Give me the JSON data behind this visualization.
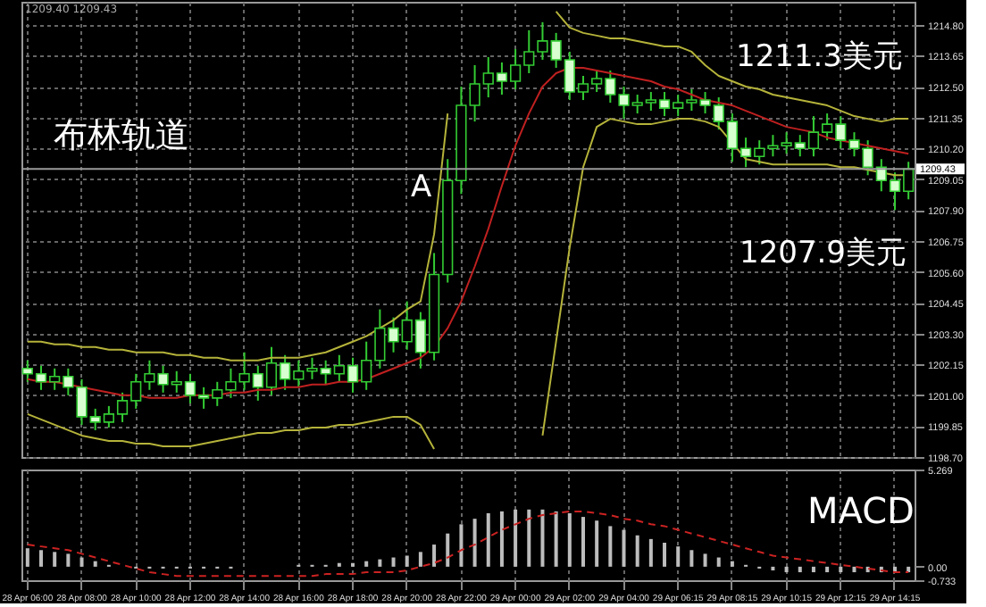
{
  "chart_data": [
    {
      "type": "candlestick",
      "subtitle": "1209.40 1209.43",
      "categories": [
        null,
        null,
        null,
        null,
        null,
        null,
        null,
        null,
        null,
        null,
        null,
        null,
        null,
        null,
        null,
        null,
        null,
        null,
        null,
        null,
        null,
        null,
        null,
        null,
        null,
        null,
        null,
        null,
        null,
        null,
        null,
        null,
        null,
        null,
        null,
        null,
        null,
        null,
        null,
        null,
        null,
        null,
        null,
        null,
        null,
        null,
        null,
        null,
        null,
        null,
        null,
        null,
        null,
        null,
        null,
        null,
        null,
        null,
        null,
        null,
        null,
        null,
        null,
        null,
        null,
        null
      ],
      "ohlc": [
        [
          1202.0,
          1202.3,
          1201.5,
          1201.8
        ],
        [
          1201.8,
          1202.1,
          1201.2,
          1201.5
        ],
        [
          1201.5,
          1202.0,
          1201.2,
          1201.7
        ],
        [
          1201.7,
          1202.0,
          1201.0,
          1201.3
        ],
        [
          1201.3,
          1201.6,
          1199.9,
          1200.2
        ],
        [
          1200.2,
          1200.5,
          1199.7,
          1200.0
        ],
        [
          1200.0,
          1200.6,
          1199.8,
          1200.3
        ],
        [
          1200.3,
          1201.1,
          1200.0,
          1200.8
        ],
        [
          1200.8,
          1201.8,
          1200.5,
          1201.5
        ],
        [
          1201.5,
          1202.3,
          1201.2,
          1201.8
        ],
        [
          1201.8,
          1202.1,
          1201.1,
          1201.4
        ],
        [
          1201.4,
          1201.9,
          1201.1,
          1201.5
        ],
        [
          1201.5,
          1201.8,
          1200.7,
          1201.0
        ],
        [
          1201.0,
          1201.3,
          1200.5,
          1200.9
        ],
        [
          1200.9,
          1201.5,
          1200.6,
          1201.2
        ],
        [
          1201.2,
          1202.0,
          1200.9,
          1201.5
        ],
        [
          1201.5,
          1202.6,
          1201.2,
          1201.8
        ],
        [
          1201.8,
          1202.1,
          1200.8,
          1201.3
        ],
        [
          1201.3,
          1202.8,
          1201.0,
          1202.2
        ],
        [
          1202.2,
          1202.5,
          1201.2,
          1201.6
        ],
        [
          1201.6,
          1202.3,
          1201.3,
          1201.9
        ],
        [
          1201.9,
          1202.4,
          1201.6,
          1202.0
        ],
        [
          1202.0,
          1202.3,
          1201.4,
          1201.8
        ],
        [
          1201.8,
          1202.5,
          1201.5,
          1202.1
        ],
        [
          1202.1,
          1202.4,
          1201.1,
          1201.5
        ],
        [
          1201.5,
          1203.0,
          1201.2,
          1202.3
        ],
        [
          1202.3,
          1204.2,
          1202.0,
          1203.5
        ],
        [
          1203.5,
          1203.9,
          1202.6,
          1203.0
        ],
        [
          1203.0,
          1204.5,
          1202.7,
          1203.8
        ],
        [
          1203.8,
          1204.1,
          1202.0,
          1202.6
        ],
        [
          1202.6,
          1206.3,
          1202.3,
          1205.5
        ],
        [
          1205.5,
          1209.8,
          1205.2,
          1209.0
        ],
        [
          1209.0,
          1212.5,
          1208.5,
          1211.8
        ],
        [
          1211.8,
          1213.3,
          1211.2,
          1212.6
        ],
        [
          1212.6,
          1213.6,
          1212.1,
          1213.0
        ],
        [
          1213.0,
          1213.4,
          1212.2,
          1212.7
        ],
        [
          1212.7,
          1213.9,
          1212.4,
          1213.3
        ],
        [
          1213.3,
          1214.6,
          1213.0,
          1213.8
        ],
        [
          1213.8,
          1214.9,
          1213.5,
          1214.2
        ],
        [
          1214.2,
          1214.5,
          1213.2,
          1213.5
        ],
        [
          1213.5,
          1213.8,
          1212.0,
          1212.3
        ],
        [
          1212.3,
          1212.9,
          1212.0,
          1212.6
        ],
        [
          1212.6,
          1213.1,
          1212.3,
          1212.8
        ],
        [
          1212.8,
          1213.1,
          1211.9,
          1212.2
        ],
        [
          1212.2,
          1212.5,
          1211.3,
          1211.8
        ],
        [
          1211.8,
          1212.2,
          1211.5,
          1211.9
        ],
        [
          1211.9,
          1212.3,
          1211.6,
          1212.0
        ],
        [
          1212.0,
          1212.3,
          1211.4,
          1211.7
        ],
        [
          1211.7,
          1212.2,
          1211.4,
          1211.9
        ],
        [
          1211.9,
          1212.4,
          1211.6,
          1212.0
        ],
        [
          1212.0,
          1212.3,
          1211.5,
          1211.8
        ],
        [
          1211.8,
          1212.1,
          1210.9,
          1211.2
        ],
        [
          1211.2,
          1211.5,
          1209.7,
          1210.2
        ],
        [
          1210.2,
          1210.6,
          1209.5,
          1209.9
        ],
        [
          1209.9,
          1210.5,
          1209.6,
          1210.2
        ],
        [
          1210.2,
          1210.7,
          1209.9,
          1210.3
        ],
        [
          1210.3,
          1210.8,
          1210.0,
          1210.4
        ],
        [
          1210.4,
          1210.7,
          1209.9,
          1210.2
        ],
        [
          1210.2,
          1211.4,
          1209.9,
          1210.8
        ],
        [
          1210.8,
          1211.5,
          1210.5,
          1211.1
        ],
        [
          1211.1,
          1211.4,
          1210.2,
          1210.5
        ],
        [
          1210.5,
          1210.8,
          1209.9,
          1210.2
        ],
        [
          1210.2,
          1210.5,
          1209.2,
          1209.5
        ],
        [
          1209.5,
          1209.8,
          1208.6,
          1209.0
        ],
        [
          1209.0,
          1209.3,
          1207.9,
          1208.6
        ],
        [
          1208.6,
          1209.7,
          1208.3,
          1209.43
        ]
      ],
      "series": [
        {
          "type": "line",
          "color": "#b5b33a",
          "values": [
            1203.0,
            1203.0,
            1202.9,
            1202.9,
            1202.8,
            1202.8,
            1202.7,
            1202.7,
            1202.6,
            1202.6,
            1202.6,
            1202.5,
            1202.5,
            1202.4,
            1202.4,
            1202.3,
            1202.3,
            1202.3,
            1202.4,
            1202.4,
            1202.4,
            1202.5,
            1202.6,
            1202.8,
            1203.0,
            1203.2,
            1203.5,
            1203.8,
            1204.2,
            1204.5,
            1207.0,
            1211.5,
            null,
            null,
            null,
            null,
            null,
            null,
            null,
            1215.3,
            1214.7,
            1214.5,
            1214.4,
            1214.3,
            1214.3,
            1214.2,
            1214.1,
            1214.0,
            1214.0,
            1213.8,
            1213.3,
            1212.9,
            1212.7,
            1212.5,
            1212.4,
            1212.2,
            1212.1,
            1212.0,
            1211.9,
            1211.8,
            1211.6,
            1211.4,
            1211.3,
            1211.2,
            1211.3,
            1211.3
          ]
        },
        {
          "type": "line",
          "color": "#c02020",
          "values": [
            1201.6,
            1201.5,
            1201.5,
            1201.4,
            1201.3,
            1201.2,
            1201.1,
            1201.0,
            1201.0,
            1200.9,
            1200.9,
            1200.9,
            1201.0,
            1201.0,
            1201.0,
            1201.1,
            1201.1,
            1201.2,
            1201.2,
            1201.3,
            1201.3,
            1201.4,
            1201.4,
            1201.5,
            1201.5,
            1201.6,
            1201.8,
            1202.0,
            1202.2,
            1202.4,
            1202.8,
            1203.5,
            1204.5,
            1205.8,
            1207.2,
            1208.8,
            1210.3,
            1211.5,
            1212.5,
            1213.0,
            1213.2,
            1213.2,
            1213.1,
            1213.0,
            1212.9,
            1212.8,
            1212.7,
            1212.5,
            1212.4,
            1212.2,
            1212.0,
            1211.9,
            1211.8,
            1211.6,
            1211.4,
            1211.2,
            1211.0,
            1210.9,
            1210.8,
            1210.6,
            1210.5,
            1210.4,
            1210.3,
            1210.2,
            1210.1,
            1210.0
          ]
        },
        {
          "type": "line",
          "color": "#b5b33a",
          "values": [
            1200.3,
            1200.1,
            1199.9,
            1199.7,
            1199.5,
            1199.4,
            1199.3,
            1199.3,
            1199.2,
            1199.2,
            1199.1,
            1199.1,
            1199.1,
            1199.2,
            1199.3,
            1199.4,
            1199.5,
            1199.6,
            1199.6,
            1199.7,
            1199.7,
            1199.8,
            1199.8,
            1199.9,
            1199.9,
            1200.0,
            1200.1,
            1200.2,
            1200.2,
            1199.9,
            1199.0,
            null,
            null,
            null,
            null,
            null,
            null,
            null,
            1199.5,
            1203.0,
            1206.5,
            1209.5,
            1211.0,
            1211.3,
            1211.2,
            1211.1,
            1211.1,
            1211.2,
            1211.3,
            1211.3,
            1211.2,
            1211.0,
            1210.4,
            1209.8,
            1209.7,
            1209.6,
            1209.6,
            1209.6,
            1209.6,
            1209.6,
            1209.5,
            1209.5,
            1209.4,
            1209.3,
            1209.2,
            1209.2
          ]
        }
      ],
      "ylim": [
        1198.7,
        1215.66
      ],
      "yticks": [
        {
          "value": 1198.7,
          "label": "1198.70"
        },
        {
          "value": 1199.85,
          "label": "1199.85"
        },
        {
          "value": 1201.0,
          "label": "1201.00"
        },
        {
          "value": 1202.15,
          "label": "1202.15"
        },
        {
          "value": 1203.3,
          "label": "1203.30"
        },
        {
          "value": 1204.45,
          "label": "1204.45"
        },
        {
          "value": 1205.6,
          "label": "1205.60"
        },
        {
          "value": 1206.75,
          "label": "1206.75"
        },
        {
          "value": 1207.9,
          "label": "1207.90"
        },
        {
          "value": 1209.05,
          "label": "1209.05"
        },
        {
          "value": 1210.2,
          "label": "1210.20"
        },
        {
          "value": 1211.35,
          "label": "1211.35"
        },
        {
          "value": 1212.5,
          "label": "1212.50"
        },
        {
          "value": 1213.65,
          "label": "1213.65"
        },
        {
          "value": 1214.8,
          "label": "1214.80"
        }
      ],
      "ref_lines": [
        {
          "axis": "y",
          "value": 1209.43,
          "label": "1209.43",
          "color": "#9a9a9a"
        }
      ],
      "annotations": [
        "布林轨道",
        "A",
        "1211.3美元",
        "1207.9美元"
      ],
      "grid": true,
      "tick_labels": "y"
    },
    {
      "type": "bar",
      "categories": [
        "28 Apr 06:00",
        null,
        null,
        null,
        "28 Apr 08:00",
        null,
        null,
        null,
        "28 Apr 10:00",
        null,
        null,
        null,
        "28 Apr 12:00",
        null,
        null,
        null,
        "28 Apr 14:00",
        null,
        null,
        null,
        "28 Apr 16:00",
        null,
        null,
        null,
        "28 Apr 18:00",
        null,
        null,
        null,
        "28 Apr 20:00",
        null,
        null,
        null,
        "28 Apr 22:00",
        null,
        null,
        null,
        "29 Apr 00:00",
        null,
        null,
        null,
        "29 Apr 02:00",
        null,
        null,
        null,
        "29 Apr 04:00",
        null,
        null,
        null,
        "29 Apr 06:15",
        null,
        null,
        null,
        "29 Apr 08:15",
        null,
        null,
        null,
        "29 Apr 10:15",
        null,
        null,
        null,
        "29 Apr 12:15",
        null,
        null,
        null,
        "29 Apr 14:15",
        null
      ],
      "series": [
        {
          "type": "bar",
          "color": "#bdbdbd",
          "values": [
            1.0,
            0.9,
            0.8,
            0.7,
            0.5,
            0.3,
            0.1,
            0.0,
            -0.1,
            -0.1,
            -0.1,
            -0.1,
            -0.1,
            -0.1,
            -0.1,
            -0.1,
            0.0,
            0.0,
            0.0,
            0.0,
            0.1,
            0.1,
            0.1,
            0.2,
            0.2,
            0.3,
            0.4,
            0.5,
            0.6,
            0.8,
            1.2,
            1.8,
            2.3,
            2.6,
            2.9,
            3.0,
            3.1,
            3.1,
            3.1,
            3.0,
            2.9,
            2.7,
            2.5,
            2.2,
            2.0,
            1.7,
            1.5,
            1.3,
            1.1,
            0.9,
            0.7,
            0.5,
            0.3,
            0.1,
            -0.1,
            -0.2,
            -0.3,
            -0.3,
            -0.3,
            -0.3,
            -0.3,
            -0.3,
            -0.3,
            -0.3,
            -0.3,
            -0.3
          ]
        },
        {
          "type": "line",
          "color": "#cc2222",
          "line_style": "dashed",
          "values": [
            1.2,
            1.1,
            1.0,
            0.9,
            0.7,
            0.5,
            0.3,
            0.1,
            -0.1,
            -0.3,
            -0.4,
            -0.5,
            -0.5,
            -0.5,
            -0.5,
            -0.5,
            -0.5,
            -0.5,
            -0.5,
            -0.5,
            -0.5,
            -0.5,
            -0.4,
            -0.4,
            -0.4,
            -0.3,
            -0.3,
            -0.3,
            -0.2,
            0.0,
            0.2,
            0.5,
            0.9,
            1.2,
            1.6,
            2.0,
            2.3,
            2.6,
            2.8,
            2.9,
            3.0,
            3.0,
            2.9,
            2.8,
            2.6,
            2.5,
            2.3,
            2.2,
            2.0,
            1.8,
            1.6,
            1.4,
            1.2,
            1.0,
            0.8,
            0.6,
            0.5,
            0.4,
            0.3,
            0.2,
            0.1,
            0.0,
            -0.1,
            -0.2,
            -0.3,
            -0.3
          ]
        }
      ],
      "ylim": [
        -0.733,
        5.269
      ],
      "yticks": [
        -0.733,
        {
          "value": 0,
          "label": "0.00"
        },
        5.269
      ],
      "annotations": [
        "MACD"
      ],
      "grid": "x"
    }
  ]
}
